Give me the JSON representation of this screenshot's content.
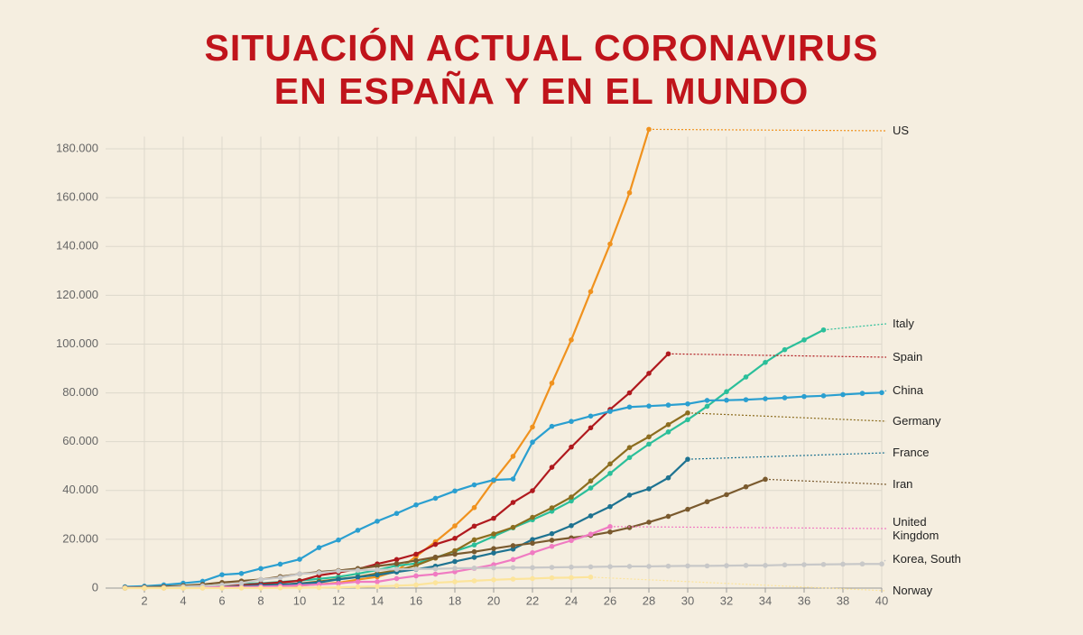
{
  "chart_data": {
    "type": "line",
    "title": [
      "SITUACIÓN ACTUAL CORONAVIRUS",
      "EN ESPAÑA Y EN EL MUNDO"
    ],
    "x": [
      1,
      2,
      3,
      4,
      5,
      6,
      7,
      8,
      9,
      10,
      11,
      12,
      13,
      14,
      15,
      16,
      17,
      18,
      19,
      20,
      21,
      22,
      23,
      24,
      25,
      26,
      27,
      28,
      29,
      30,
      31,
      32,
      33,
      34,
      35,
      36,
      37,
      38,
      39,
      40
    ],
    "xlim": [
      0,
      40
    ],
    "xticks": [
      2,
      4,
      6,
      8,
      10,
      12,
      14,
      16,
      18,
      20,
      22,
      24,
      26,
      28,
      30,
      32,
      34,
      36,
      38,
      40
    ],
    "ylim": [
      0,
      185000
    ],
    "yticks": [
      0,
      {
        "value": 20000,
        "label": "20.000"
      },
      {
        "value": 40000,
        "label": "40.000"
      },
      {
        "value": 60000,
        "label": "60.000"
      },
      {
        "value": 80000,
        "label": "80.000"
      },
      {
        "value": 100000,
        "label": "100.000"
      },
      {
        "value": 120000,
        "label": "120.000"
      },
      {
        "value": 140000,
        "label": "140.000"
      },
      {
        "value": 160000,
        "label": "160.000"
      },
      {
        "value": 180000,
        "label": "180.000"
      }
    ],
    "grid": true,
    "series": [
      {
        "name": "US",
        "color": "#f0921e",
        "values": [
          15,
          20,
          35,
          50,
          70,
          100,
          200,
          400,
          700,
          1000,
          1600,
          2200,
          3500,
          4600,
          7000,
          13000,
          19000,
          25500,
          33000,
          44000,
          54000,
          66000,
          84000,
          101700,
          121500,
          141000,
          162000,
          188000,
          null,
          null,
          null,
          null,
          null,
          null,
          null,
          null,
          null,
          null,
          null,
          null
        ]
      },
      {
        "name": "Italy",
        "color": "#2bbf9a",
        "values": [
          150,
          320,
          400,
          650,
          890,
          1100,
          1700,
          2000,
          2500,
          3100,
          3800,
          4600,
          5900,
          7400,
          9200,
          10100,
          12500,
          15100,
          17700,
          21200,
          24700,
          28000,
          31500,
          35700,
          41000,
          47000,
          53500,
          59000,
          64000,
          69000,
          74500,
          80500,
          86500,
          92500,
          97700,
          101700,
          105800,
          null,
          null,
          null
        ]
      },
      {
        "name": "Spain",
        "color": "#b0191e",
        "values": [
          80,
          100,
          150,
          250,
          400,
          600,
          1200,
          1700,
          2300,
          3000,
          5200,
          6400,
          7800,
          9900,
          11700,
          13900,
          17900,
          20400,
          25400,
          28600,
          35100,
          39900,
          49500,
          57800,
          65700,
          73200,
          80000,
          88000,
          96000,
          null,
          null,
          null,
          null,
          null,
          null,
          null,
          null,
          null,
          null,
          null
        ]
      },
      {
        "name": "China",
        "color": "#2a9fd0",
        "values": [
          550,
          800,
          1300,
          2000,
          2800,
          5500,
          6000,
          8000,
          9800,
          11800,
          16600,
          19700,
          23700,
          27400,
          30600,
          34100,
          36800,
          39800,
          42300,
          44300,
          44700,
          59800,
          66300,
          68300,
          70500,
          72400,
          74200,
          74600,
          75000,
          75500,
          76900,
          77000,
          77200,
          77600,
          78000,
          78500,
          78800,
          79300,
          79800,
          80100
        ]
      },
      {
        "name": "Germany",
        "color": "#8c6d1f",
        "values": [
          80,
          130,
          150,
          200,
          260,
          500,
          800,
          1100,
          1500,
          1900,
          2700,
          3700,
          4600,
          6000,
          7200,
          9300,
          12300,
          15300,
          19800,
          22200,
          24900,
          29000,
          32900,
          37300,
          43900,
          50900,
          57600,
          62000,
          67000,
          71800,
          null,
          null,
          null,
          null,
          null,
          null,
          null,
          null,
          null,
          null
        ]
      },
      {
        "name": "France",
        "color": "#1e7391",
        "values": [
          60,
          100,
          130,
          190,
          200,
          400,
          700,
          1100,
          1400,
          1800,
          2300,
          3600,
          4500,
          5400,
          6600,
          7700,
          9000,
          10900,
          12600,
          14400,
          16000,
          19900,
          22300,
          25600,
          29600,
          33400,
          38100,
          40700,
          45200,
          52800,
          null,
          null,
          null,
          null,
          null,
          null,
          null,
          null,
          null,
          null
        ]
      },
      {
        "name": "Iran",
        "color": "#7a5a2e",
        "values": [
          250,
          400,
          600,
          1000,
          1500,
          2300,
          2900,
          3500,
          4700,
          5800,
          6600,
          7200,
          8000,
          9000,
          10000,
          11300,
          12700,
          13900,
          14900,
          16200,
          17400,
          18400,
          19600,
          20600,
          21600,
          23000,
          24800,
          27000,
          29400,
          32300,
          35400,
          38300,
          41500,
          44600,
          null,
          null,
          null,
          null,
          null,
          null
        ]
      },
      {
        "name": "United Kingdom",
        "color": "#f07bc2",
        "values": [
          80,
          100,
          160,
          200,
          270,
          370,
          450,
          600,
          800,
          1100,
          1500,
          1900,
          2600,
          2600,
          3900,
          5000,
          5700,
          6700,
          8100,
          9600,
          11700,
          14500,
          17100,
          19500,
          22100,
          25200,
          null,
          null,
          null,
          null,
          null,
          null,
          null,
          null,
          null,
          null,
          null,
          null,
          null,
          null
        ]
      },
      {
        "name": "Korea, South",
        "color": "#c8c8c8",
        "values": [
          30,
          100,
          200,
          600,
          900,
          1300,
          2000,
          3500,
          4300,
          5800,
          6300,
          7000,
          7300,
          7500,
          7700,
          7800,
          7900,
          8100,
          8200,
          8300,
          8400,
          8400,
          8500,
          8600,
          8700,
          8800,
          8900,
          8900,
          9000,
          9100,
          9100,
          9200,
          9300,
          9300,
          9500,
          9600,
          9700,
          9800,
          9900,
          9900
        ]
      },
      {
        "name": "Norway",
        "color": "#fce49b",
        "values": [
          1,
          1,
          2,
          5,
          10,
          20,
          40,
          60,
          100,
          150,
          200,
          300,
          500,
          700,
          1000,
          1300,
          2200,
          2600,
          3000,
          3400,
          3700,
          3900,
          4200,
          4300,
          4500,
          null,
          null,
          null,
          null,
          null,
          null,
          null,
          null,
          null,
          null,
          null,
          null,
          null,
          null,
          null
        ]
      }
    ]
  }
}
